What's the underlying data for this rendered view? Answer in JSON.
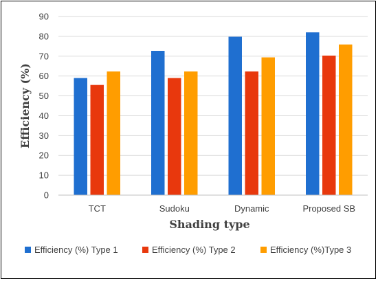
{
  "chart_data": {
    "type": "bar",
    "categories": [
      "TCT",
      "Sudoku",
      "Dynamic",
      "Proposed SB"
    ],
    "series": [
      {
        "name": "Efficiency (%) Type 1",
        "values": [
          59,
          72.7,
          79.8,
          82
        ],
        "color": "#1f6fd0"
      },
      {
        "name": "Efficiency (%) Type 2",
        "values": [
          55.5,
          59,
          62.3,
          70.3
        ],
        "color": "#e8380d"
      },
      {
        "name": "Efficiency (%)Type 3",
        "values": [
          62.3,
          62.3,
          69.4,
          75.9
        ],
        "color": "#ff9d00"
      }
    ],
    "xlabel": "Shading type",
    "ylabel": "Efficiency (%)",
    "ylim": [
      0,
      90
    ],
    "yticks": [
      0,
      10,
      20,
      30,
      40,
      50,
      60,
      70,
      80,
      90
    ],
    "grid": true,
    "legend_position": "bottom"
  }
}
